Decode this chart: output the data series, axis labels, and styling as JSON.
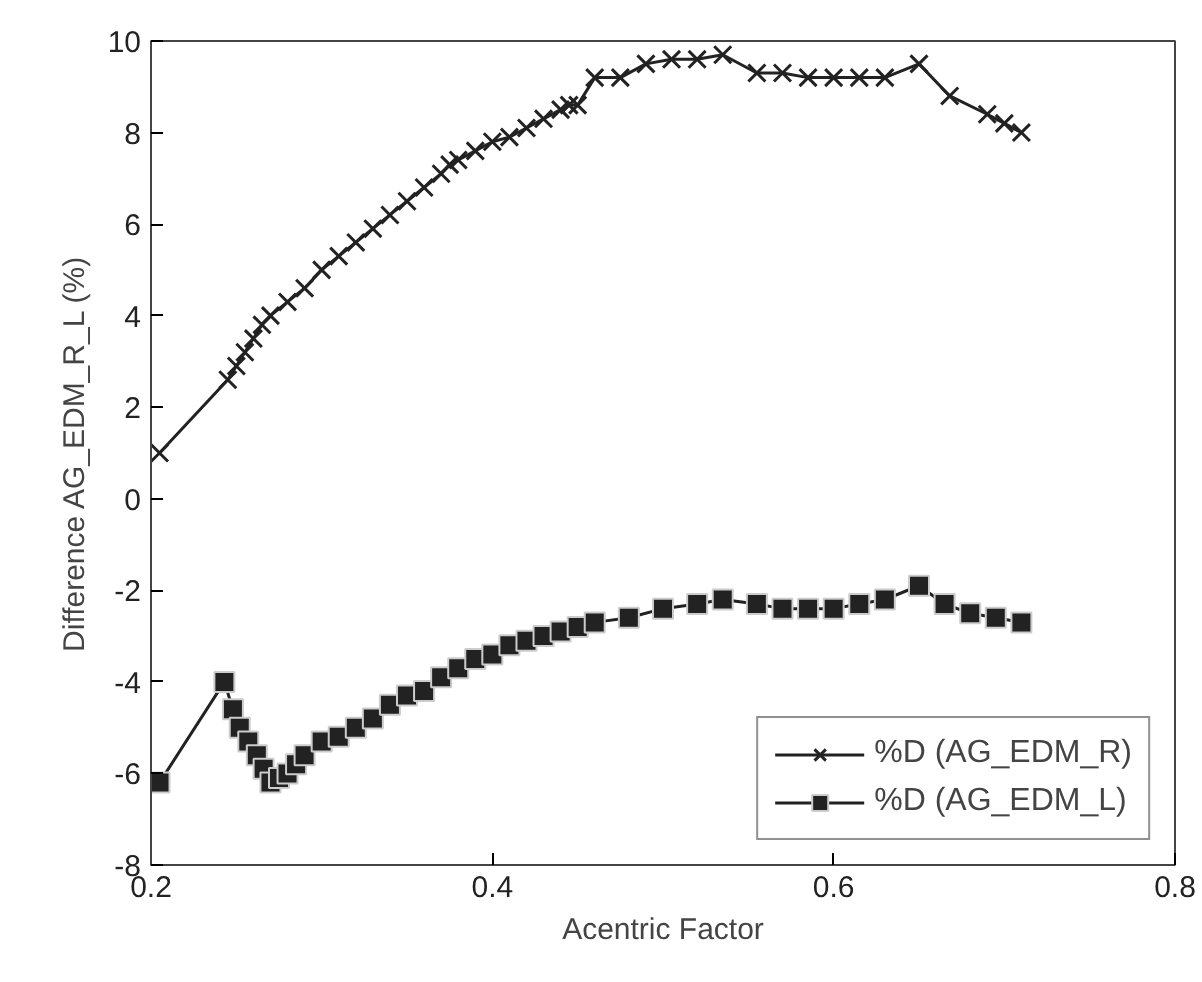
{
  "chart_data": {
    "type": "line",
    "xlabel": "Acentric Factor",
    "ylabel": "Difference AG_EDM_R_L (%)",
    "xlim": [
      0.2,
      0.8
    ],
    "xticks": [
      0.2,
      0.4,
      0.6,
      0.8
    ],
    "ylim": [
      -8,
      10
    ],
    "yticks": [
      -8,
      -6,
      -4,
      -2,
      0,
      2,
      4,
      6,
      8,
      10
    ],
    "grid": false,
    "legend": "bottom right",
    "line_style": "solid",
    "series": [
      {
        "name": "%D (AG_EDM_R)",
        "color": "#222222",
        "marker": "cross",
        "x": [
          0.205,
          0.245,
          0.25,
          0.255,
          0.26,
          0.265,
          0.27,
          0.28,
          0.29,
          0.3,
          0.31,
          0.32,
          0.33,
          0.34,
          0.35,
          0.36,
          0.37,
          0.375,
          0.38,
          0.39,
          0.4,
          0.41,
          0.42,
          0.43,
          0.44,
          0.445,
          0.45,
          0.46,
          0.475,
          0.49,
          0.505,
          0.52,
          0.535,
          0.555,
          0.57,
          0.585,
          0.6,
          0.615,
          0.63,
          0.65,
          0.668,
          0.69,
          0.7,
          0.71
        ],
        "values": [
          1.0,
          2.6,
          2.9,
          3.2,
          3.5,
          3.8,
          4.0,
          4.3,
          4.6,
          5.0,
          5.3,
          5.6,
          5.9,
          6.2,
          6.5,
          6.8,
          7.1,
          7.3,
          7.4,
          7.6,
          7.8,
          7.9,
          8.1,
          8.3,
          8.5,
          8.6,
          8.6,
          9.2,
          9.2,
          9.5,
          9.6,
          9.6,
          9.7,
          9.3,
          9.3,
          9.2,
          9.2,
          9.2,
          9.2,
          9.5,
          8.8,
          8.4,
          8.2,
          8.0
        ]
      },
      {
        "name": "%D (AG_EDM_L)",
        "color": "#222222",
        "marker": "square",
        "x": [
          0.205,
          0.243,
          0.248,
          0.252,
          0.257,
          0.262,
          0.266,
          0.27,
          0.275,
          0.28,
          0.285,
          0.29,
          0.3,
          0.31,
          0.32,
          0.33,
          0.34,
          0.35,
          0.36,
          0.37,
          0.38,
          0.39,
          0.4,
          0.41,
          0.42,
          0.43,
          0.44,
          0.45,
          0.46,
          0.48,
          0.5,
          0.52,
          0.535,
          0.555,
          0.57,
          0.585,
          0.6,
          0.615,
          0.63,
          0.65,
          0.665,
          0.68,
          0.695,
          0.71
        ],
        "values": [
          -6.2,
          -4.0,
          -4.6,
          -5.0,
          -5.3,
          -5.6,
          -5.9,
          -6.2,
          -6.1,
          -6.0,
          -5.8,
          -5.6,
          -5.3,
          -5.2,
          -5.0,
          -4.8,
          -4.5,
          -4.3,
          -4.2,
          -3.9,
          -3.7,
          -3.5,
          -3.4,
          -3.2,
          -3.1,
          -3.0,
          -2.9,
          -2.8,
          -2.7,
          -2.6,
          -2.4,
          -2.3,
          -2.2,
          -2.3,
          -2.4,
          -2.4,
          -2.4,
          -2.3,
          -2.2,
          -1.9,
          -2.3,
          -2.5,
          -2.6,
          -2.7
        ]
      }
    ]
  }
}
